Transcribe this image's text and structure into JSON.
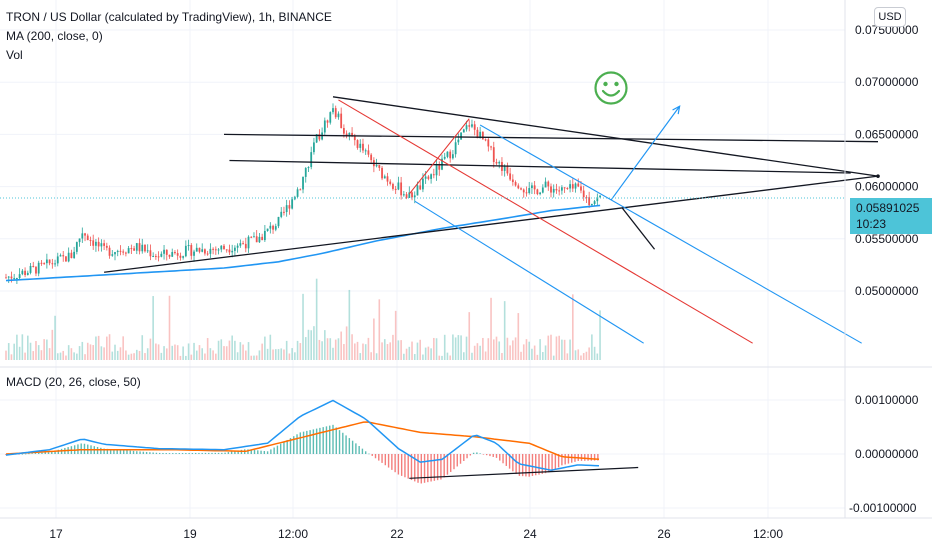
{
  "header": {
    "symbol_title": "TRON / US Dollar (calculated by TradingView), 1h, BINANCE",
    "ma_label": "MA (200, close, 0)",
    "vol_label": "Vol",
    "currency_button": "USD"
  },
  "price_badge": {
    "price": "0.05891025",
    "countdown": "10:23"
  },
  "macd_panel": {
    "label": "MACD (20, 26, close, 50)"
  },
  "colors": {
    "up": "#26a69a",
    "down": "#ef5350",
    "ma_line": "#2196f3",
    "macd_line": "#2196f3",
    "signal_line": "#ff6d00",
    "trendline": "#131722",
    "channel_red": "#e53935",
    "channel_blue": "#2196f3",
    "smiley": "#4caf50",
    "price_line": "#4dc4d8"
  },
  "icons": {
    "smiley": "smiley-face-icon"
  },
  "chart_data": [
    {
      "type": "candlestick",
      "title": "TRON / US Dollar (calculated by TradingView), 1h, BINANCE",
      "y_tick_labels": [
        "0.07500000",
        "0.07000000",
        "0.06500000",
        "0.06000000",
        "0.05500000",
        "0.05000000"
      ],
      "y_ticks": [
        0.075,
        0.07,
        0.065,
        0.06,
        0.055,
        0.05
      ],
      "x_tick_labels": [
        "17",
        "19",
        "12:00",
        "22",
        "24",
        "26",
        "12:00"
      ],
      "last_price": 0.05891025,
      "price_path": [
        {
          "x": 0,
          "y": 0.0513
        },
        {
          "x": 3,
          "y": 0.0522
        },
        {
          "x": 6,
          "y": 0.0534
        },
        {
          "x": 7,
          "y": 0.0557
        },
        {
          "x": 9,
          "y": 0.0538
        },
        {
          "x": 12,
          "y": 0.0542
        },
        {
          "x": 14,
          "y": 0.0534
        },
        {
          "x": 17,
          "y": 0.0539
        },
        {
          "x": 20,
          "y": 0.0541
        },
        {
          "x": 23,
          "y": 0.0549
        },
        {
          "x": 25,
          "y": 0.0566
        },
        {
          "x": 27,
          "y": 0.0602
        },
        {
          "x": 28.5,
          "y": 0.0645
        },
        {
          "x": 30,
          "y": 0.0675
        },
        {
          "x": 31,
          "y": 0.0655
        },
        {
          "x": 32.5,
          "y": 0.0638
        },
        {
          "x": 34,
          "y": 0.0617
        },
        {
          "x": 35.5,
          "y": 0.0603
        },
        {
          "x": 37,
          "y": 0.059
        },
        {
          "x": 38.5,
          "y": 0.0605
        },
        {
          "x": 40,
          "y": 0.0622
        },
        {
          "x": 41,
          "y": 0.0636
        },
        {
          "x": 42.5,
          "y": 0.066
        },
        {
          "x": 43.5,
          "y": 0.0648
        },
        {
          "x": 45,
          "y": 0.0625
        },
        {
          "x": 46.5,
          "y": 0.0608
        },
        {
          "x": 48,
          "y": 0.0595
        },
        {
          "x": 49.5,
          "y": 0.06
        },
        {
          "x": 51,
          "y": 0.0596
        },
        {
          "x": 52.5,
          "y": 0.0598
        },
        {
          "x": 53.5,
          "y": 0.0586
        },
        {
          "x": 54.5,
          "y": 0.0589
        }
      ],
      "ma_200": [
        {
          "x": 0,
          "y": 0.051
        },
        {
          "x": 10,
          "y": 0.0516
        },
        {
          "x": 20,
          "y": 0.0522
        },
        {
          "x": 25,
          "y": 0.0528
        },
        {
          "x": 29,
          "y": 0.0536
        },
        {
          "x": 34,
          "y": 0.0548
        },
        {
          "x": 40,
          "y": 0.056
        },
        {
          "x": 46,
          "y": 0.057
        },
        {
          "x": 50,
          "y": 0.0577
        },
        {
          "x": 54.5,
          "y": 0.0582
        }
      ],
      "drawings": [
        {
          "name": "triangle-upper-line",
          "from": {
            "x": 30,
            "y": 0.0686
          },
          "to": {
            "x": 80,
            "y": 0.061
          }
        },
        {
          "name": "triangle-lower-line",
          "from": {
            "x": 9,
            "y": 0.0518
          },
          "to": {
            "x": 80,
            "y": 0.061
          }
        },
        {
          "name": "horizontal-line-upper",
          "from": {
            "x": 20,
            "y": 0.065
          },
          "to": {
            "x": 80,
            "y": 0.0643
          }
        },
        {
          "name": "horizontal-line-lower",
          "from": {
            "x": 20.5,
            "y": 0.0625
          },
          "to": {
            "x": 77.5,
            "y": 0.0613
          }
        },
        {
          "name": "projection-down-line",
          "from": {
            "x": 56.5,
            "y": 0.058
          },
          "to": {
            "x": 59.5,
            "y": 0.054
          }
        }
      ],
      "red_channel": [
        {
          "name": "red-channel-upper",
          "from": {
            "x": 30.5,
            "y": 0.0683
          },
          "to": {
            "x": 68.5,
            "y": 0.045
          }
        },
        {
          "name": "red-channel-lower",
          "from": {
            "x": 37,
            "y": 0.0593
          },
          "to": {
            "x": 42.5,
            "y": 0.0665
          }
        }
      ],
      "blue_channel": [
        {
          "name": "blue-channel-upper",
          "from": {
            "x": 43.5,
            "y": 0.0659
          },
          "to": {
            "x": 78.5,
            "y": 0.045
          }
        },
        {
          "name": "blue-channel-lower",
          "from": {
            "x": 37.5,
            "y": 0.0586
          },
          "to": {
            "x": 58.5,
            "y": 0.045
          }
        }
      ],
      "target_arrow": {
        "from": {
          "x": 55.5,
          "y": 0.0587
        },
        "to": {
          "x": 61.8,
          "y": 0.0677
        }
      }
    },
    {
      "type": "macd",
      "title": "MACD (20, 26, close, 50)",
      "y_tick_labels": [
        "0.00100000",
        "0.00000000",
        "-0.00100000"
      ],
      "y_ticks": [
        0.001,
        0.0,
        -0.001
      ],
      "macd_line": [
        {
          "x": 0,
          "y": -2e-05
        },
        {
          "x": 4,
          "y": 8e-05
        },
        {
          "x": 7,
          "y": 0.00028
        },
        {
          "x": 9,
          "y": 0.00018
        },
        {
          "x": 14,
          "y": 0.0001
        },
        {
          "x": 20,
          "y": 8e-05
        },
        {
          "x": 24,
          "y": 0.0002
        },
        {
          "x": 27,
          "y": 0.0007
        },
        {
          "x": 30,
          "y": 0.00099
        },
        {
          "x": 33,
          "y": 0.00065
        },
        {
          "x": 36,
          "y": 0.0001
        },
        {
          "x": 38,
          "y": -0.00015
        },
        {
          "x": 40,
          "y": -0.0001
        },
        {
          "x": 43,
          "y": 0.00036
        },
        {
          "x": 45,
          "y": 0.0002
        },
        {
          "x": 47,
          "y": -0.00018
        },
        {
          "x": 50,
          "y": -0.0003
        },
        {
          "x": 52.5,
          "y": -0.0002
        },
        {
          "x": 54.5,
          "y": -0.00022
        }
      ],
      "signal_line": [
        {
          "x": 0,
          "y": 0.0
        },
        {
          "x": 7,
          "y": 8e-05
        },
        {
          "x": 15,
          "y": 8e-05
        },
        {
          "x": 22,
          "y": 5e-05
        },
        {
          "x": 27,
          "y": 0.0003
        },
        {
          "x": 33,
          "y": 0.0006
        },
        {
          "x": 38,
          "y": 0.0004
        },
        {
          "x": 43,
          "y": 0.00032
        },
        {
          "x": 48,
          "y": 0.0002
        },
        {
          "x": 51,
          "y": -5e-05
        },
        {
          "x": 54.5,
          "y": -0.0001
        }
      ],
      "divergence_line": {
        "from": {
          "x": 37,
          "y": -0.00045
        },
        "to": {
          "x": 58,
          "y": -0.00025
        }
      }
    }
  ]
}
